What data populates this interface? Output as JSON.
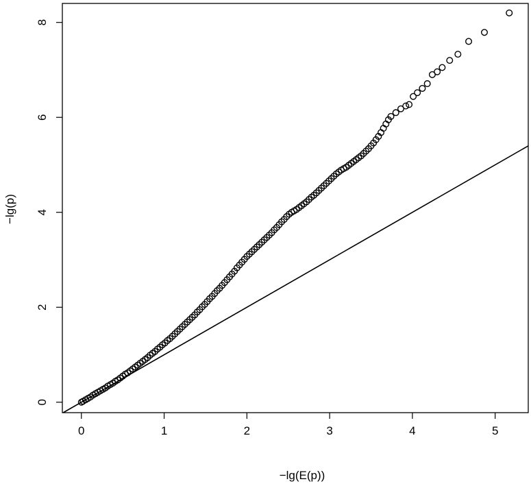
{
  "chart_data": {
    "type": "scatter",
    "title": "",
    "xlabel": "−lg(E(p))",
    "ylabel": "−lg(p)",
    "xlim": [
      -0.23,
      5.4
    ],
    "ylim": [
      -0.22,
      8.4
    ],
    "x_ticks": [
      0,
      1,
      2,
      3,
      4,
      5
    ],
    "y_ticks": [
      0,
      2,
      4,
      6,
      8
    ],
    "x_tick_labels": [
      "0",
      "1",
      "2",
      "3",
      "4",
      "5"
    ],
    "y_tick_labels": [
      "0",
      "2",
      "4",
      "6",
      "8"
    ],
    "grid": false,
    "legend": "none",
    "reference_line": {
      "type": "identity",
      "slope": 1,
      "intercept": 0
    },
    "marker": "open-circle",
    "colors": {
      "points": "#000000",
      "line": "#000000",
      "frame": "#000000"
    },
    "series": [
      {
        "points": [
          [
            0.0,
            0.0
          ],
          [
            0.02,
            0.02
          ],
          [
            0.05,
            0.05
          ],
          [
            0.08,
            0.08
          ],
          [
            0.11,
            0.11
          ],
          [
            0.14,
            0.15
          ],
          [
            0.17,
            0.18
          ],
          [
            0.2,
            0.21
          ],
          [
            0.23,
            0.24
          ],
          [
            0.26,
            0.27
          ],
          [
            0.29,
            0.3
          ],
          [
            0.32,
            0.34
          ],
          [
            0.35,
            0.37
          ],
          [
            0.38,
            0.4
          ],
          [
            0.41,
            0.44
          ],
          [
            0.44,
            0.47
          ],
          [
            0.47,
            0.51
          ],
          [
            0.5,
            0.55
          ],
          [
            0.53,
            0.59
          ],
          [
            0.56,
            0.62
          ],
          [
            0.59,
            0.66
          ],
          [
            0.62,
            0.7
          ],
          [
            0.65,
            0.74
          ],
          [
            0.68,
            0.78
          ],
          [
            0.71,
            0.82
          ],
          [
            0.74,
            0.86
          ],
          [
            0.77,
            0.9
          ],
          [
            0.8,
            0.94
          ],
          [
            0.83,
            0.99
          ],
          [
            0.86,
            1.03
          ],
          [
            0.89,
            1.07
          ],
          [
            0.92,
            1.12
          ],
          [
            0.95,
            1.16
          ],
          [
            0.98,
            1.21
          ],
          [
            1.01,
            1.25
          ],
          [
            1.04,
            1.3
          ],
          [
            1.07,
            1.34
          ],
          [
            1.1,
            1.39
          ],
          [
            1.13,
            1.44
          ],
          [
            1.16,
            1.49
          ],
          [
            1.19,
            1.54
          ],
          [
            1.22,
            1.59
          ],
          [
            1.25,
            1.64
          ],
          [
            1.28,
            1.69
          ],
          [
            1.31,
            1.74
          ],
          [
            1.34,
            1.79
          ],
          [
            1.37,
            1.84
          ],
          [
            1.4,
            1.9
          ],
          [
            1.43,
            1.95
          ],
          [
            1.46,
            2.01
          ],
          [
            1.49,
            2.06
          ],
          [
            1.52,
            2.12
          ],
          [
            1.55,
            2.18
          ],
          [
            1.58,
            2.23
          ],
          [
            1.61,
            2.29
          ],
          [
            1.64,
            2.35
          ],
          [
            1.67,
            2.4
          ],
          [
            1.7,
            2.46
          ],
          [
            1.73,
            2.52
          ],
          [
            1.76,
            2.58
          ],
          [
            1.79,
            2.64
          ],
          [
            1.82,
            2.7
          ],
          [
            1.85,
            2.76
          ],
          [
            1.88,
            2.83
          ],
          [
            1.91,
            2.89
          ],
          [
            1.94,
            2.95
          ],
          [
            1.97,
            3.01
          ],
          [
            2.0,
            3.07
          ],
          [
            2.03,
            3.12
          ],
          [
            2.06,
            3.17
          ],
          [
            2.09,
            3.22
          ],
          [
            2.12,
            3.27
          ],
          [
            2.15,
            3.32
          ],
          [
            2.18,
            3.37
          ],
          [
            2.21,
            3.42
          ],
          [
            2.24,
            3.47
          ],
          [
            2.27,
            3.52
          ],
          [
            2.3,
            3.57
          ],
          [
            2.33,
            3.63
          ],
          [
            2.36,
            3.68
          ],
          [
            2.39,
            3.74
          ],
          [
            2.42,
            3.8
          ],
          [
            2.45,
            3.85
          ],
          [
            2.48,
            3.91
          ],
          [
            2.51,
            3.96
          ],
          [
            2.54,
            4.0
          ],
          [
            2.57,
            4.03
          ],
          [
            2.6,
            4.06
          ],
          [
            2.63,
            4.1
          ],
          [
            2.66,
            4.14
          ],
          [
            2.69,
            4.18
          ],
          [
            2.72,
            4.22
          ],
          [
            2.75,
            4.27
          ],
          [
            2.78,
            4.32
          ],
          [
            2.81,
            4.36
          ],
          [
            2.84,
            4.41
          ],
          [
            2.87,
            4.46
          ],
          [
            2.9,
            4.51
          ],
          [
            2.93,
            4.56
          ],
          [
            2.96,
            4.61
          ],
          [
            2.99,
            4.66
          ],
          [
            3.02,
            4.71
          ],
          [
            3.05,
            4.76
          ],
          [
            3.08,
            4.81
          ],
          [
            3.11,
            4.85
          ],
          [
            3.14,
            4.89
          ],
          [
            3.17,
            4.92
          ],
          [
            3.2,
            4.95
          ],
          [
            3.23,
            4.99
          ],
          [
            3.26,
            5.03
          ],
          [
            3.29,
            5.07
          ],
          [
            3.32,
            5.11
          ],
          [
            3.35,
            5.15
          ],
          [
            3.38,
            5.19
          ],
          [
            3.41,
            5.24
          ],
          [
            3.44,
            5.29
          ],
          [
            3.47,
            5.34
          ],
          [
            3.5,
            5.4
          ],
          [
            3.53,
            5.46
          ],
          [
            3.56,
            5.53
          ],
          [
            3.59,
            5.6
          ],
          [
            3.62,
            5.68
          ],
          [
            3.65,
            5.77
          ],
          [
            3.68,
            5.86
          ],
          [
            3.71,
            5.95
          ],
          [
            3.74,
            6.02
          ],
          [
            3.8,
            6.1
          ],
          [
            3.86,
            6.18
          ],
          [
            3.92,
            6.24
          ],
          [
            3.96,
            6.27
          ],
          [
            4.01,
            6.44
          ],
          [
            4.06,
            6.52
          ],
          [
            4.12,
            6.61
          ],
          [
            4.18,
            6.71
          ],
          [
            4.24,
            6.9
          ],
          [
            4.3,
            6.96
          ],
          [
            4.36,
            7.05
          ],
          [
            4.45,
            7.2
          ],
          [
            4.55,
            7.33
          ],
          [
            4.68,
            7.6
          ],
          [
            4.87,
            7.79
          ],
          [
            5.17,
            8.2
          ]
        ]
      }
    ]
  }
}
